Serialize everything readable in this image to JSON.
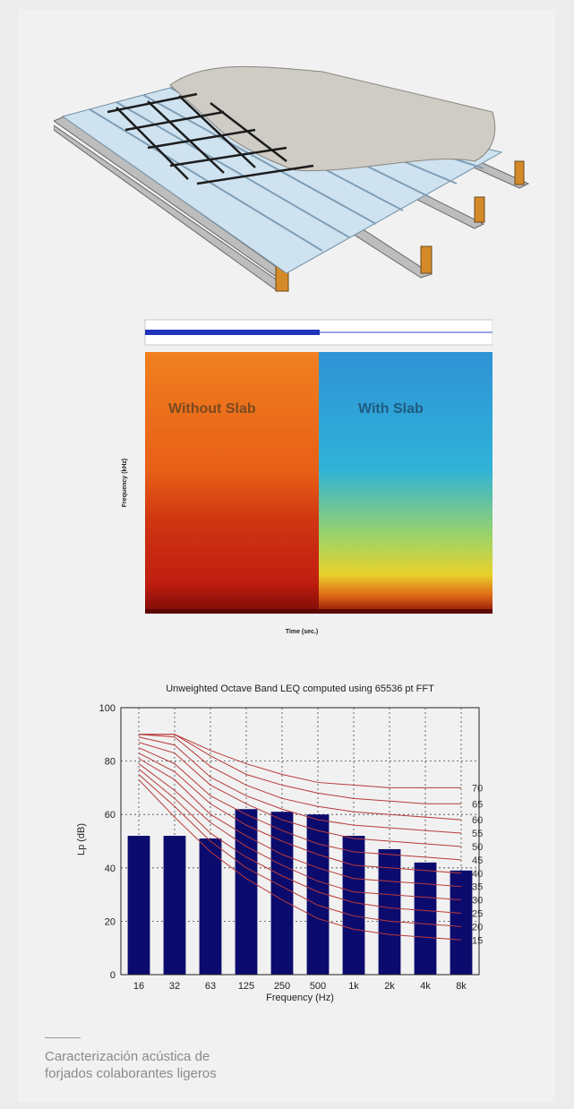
{
  "spectrogram": {
    "left_label": "Without Slab",
    "right_label": "With Slab",
    "xlabel": "Time (sec.)",
    "ylabel": "Frequency (kHz)"
  },
  "chart_data": {
    "type": "bar",
    "title": "Unweighted Octave Band LEQ computed using 65536 pt FFT",
    "xlabel": "Frequency (Hz)",
    "ylabel": "Lp (dB)",
    "categories": [
      "16",
      "32",
      "63",
      "125",
      "250",
      "500",
      "1k",
      "2k",
      "4k",
      "8k"
    ],
    "values": [
      52,
      52,
      51,
      62,
      61,
      60,
      52,
      47,
      42,
      39
    ],
    "ylim": [
      0,
      100
    ],
    "yticks": [
      "0",
      "20",
      "40",
      "60",
      "80",
      "100"
    ],
    "grid": true,
    "bar_color": "#0b0b6e",
    "curve_color": "#b83a3a",
    "nc_curves": [
      {
        "label": "70",
        "values": [
          90,
          90,
          84,
          79,
          75,
          72,
          71,
          70,
          70,
          70
        ]
      },
      {
        "label": "65",
        "values": [
          90,
          90,
          82,
          75,
          71,
          68,
          66,
          65,
          64,
          64
        ]
      },
      {
        "label": "60",
        "values": [
          90,
          89,
          78,
          71,
          66,
          63,
          61,
          60,
          59,
          58
        ]
      },
      {
        "label": "55",
        "values": [
          89,
          86,
          74,
          67,
          62,
          58,
          56,
          55,
          54,
          53
        ]
      },
      {
        "label": "50",
        "values": [
          87,
          83,
          71,
          64,
          58,
          54,
          51,
          50,
          49,
          48
        ]
      },
      {
        "label": "45",
        "values": [
          85,
          79,
          67,
          60,
          54,
          49,
          46,
          45,
          44,
          43
        ]
      },
      {
        "label": "40",
        "values": [
          83,
          76,
          64,
          56,
          50,
          45,
          41,
          40,
          39,
          38
        ]
      },
      {
        "label": "35",
        "values": [
          81,
          73,
          60,
          52,
          45,
          40,
          36,
          35,
          34,
          33
        ]
      },
      {
        "label": "30",
        "values": [
          79,
          69,
          57,
          48,
          41,
          35,
          31,
          30,
          29,
          28
        ]
      },
      {
        "label": "25",
        "values": [
          77,
          66,
          53,
          44,
          37,
          31,
          27,
          25,
          24,
          23
        ]
      },
      {
        "label": "20",
        "values": [
          75,
          63,
          50,
          40,
          33,
          26,
          22,
          20,
          19,
          18
        ]
      },
      {
        "label": "15",
        "values": [
          73,
          59,
          46,
          36,
          28,
          21,
          17,
          15,
          14,
          13
        ]
      }
    ]
  },
  "caption": {
    "line1": "Caracterización acústica de",
    "line2": "forjados colaborantes ligeros"
  }
}
